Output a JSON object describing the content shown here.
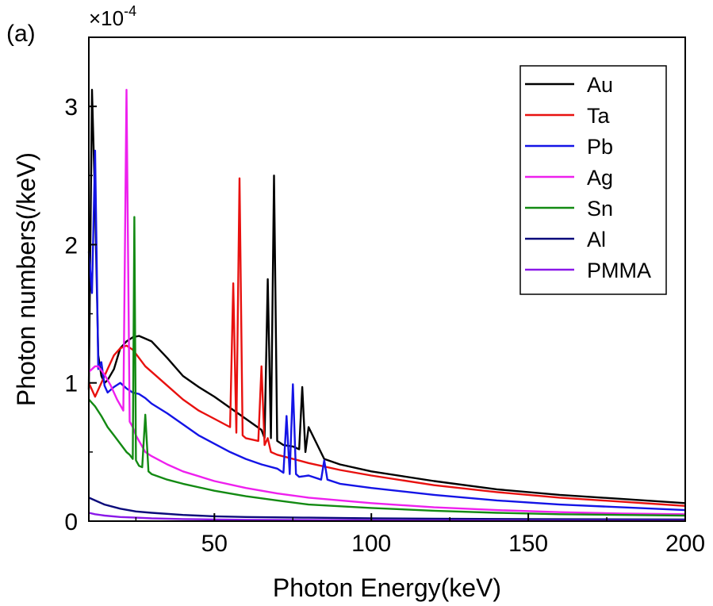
{
  "chart_data": {
    "type": "line",
    "panel_label": "(a)",
    "xlabel": "Photon Energy(keV)",
    "ylabel": "Photon numbers(/keV)",
    "y_multiplier": {
      "base": "×10",
      "exponent": "-4"
    },
    "xlim": [
      10,
      200
    ],
    "ylim": [
      0,
      3.5
    ],
    "x_ticks": [
      50,
      100,
      150,
      200
    ],
    "y_ticks": [
      0,
      1,
      2,
      3
    ],
    "grid": false,
    "legend_position": "top-right",
    "series": [
      {
        "name": "Au",
        "color": "#000000",
        "x": [
          10,
          11,
          12,
          13,
          14,
          15,
          16,
          18,
          20,
          22,
          24,
          26,
          28,
          30,
          35,
          40,
          45,
          50,
          55,
          60,
          65,
          66,
          67,
          68,
          69,
          70,
          72,
          75,
          77,
          78,
          79,
          80,
          85,
          90,
          100,
          120,
          140,
          160,
          180,
          200
        ],
        "y": [
          0.95,
          3.12,
          2.3,
          1.2,
          1.05,
          1.0,
          1.02,
          1.1,
          1.25,
          1.3,
          1.33,
          1.34,
          1.32,
          1.3,
          1.18,
          1.05,
          0.97,
          0.9,
          0.82,
          0.74,
          0.66,
          0.6,
          1.75,
          0.6,
          2.5,
          0.58,
          0.55,
          0.54,
          0.52,
          0.97,
          0.5,
          0.68,
          0.45,
          0.41,
          0.36,
          0.29,
          0.23,
          0.19,
          0.16,
          0.13
        ]
      },
      {
        "name": "Ta",
        "color": "#e8110f",
        "x": [
          10,
          12,
          14,
          16,
          18,
          20,
          22,
          24,
          26,
          28,
          30,
          35,
          40,
          45,
          50,
          55,
          56,
          57,
          58,
          59,
          60,
          64,
          65,
          66,
          67,
          68,
          70,
          80,
          90,
          100,
          120,
          140,
          160,
          180,
          200
        ],
        "y": [
          1.0,
          0.9,
          1.0,
          1.1,
          1.2,
          1.25,
          1.27,
          1.24,
          1.18,
          1.12,
          1.08,
          0.98,
          0.88,
          0.8,
          0.74,
          0.68,
          1.72,
          0.64,
          2.48,
          0.62,
          0.6,
          0.58,
          1.12,
          0.55,
          0.6,
          0.5,
          0.48,
          0.42,
          0.37,
          0.33,
          0.26,
          0.21,
          0.17,
          0.14,
          0.11
        ]
      },
      {
        "name": "Pb",
        "color": "#1414e6",
        "x": [
          10,
          11,
          12,
          13,
          14,
          15,
          16,
          18,
          20,
          22,
          24,
          26,
          28,
          30,
          35,
          40,
          45,
          50,
          55,
          60,
          65,
          70,
          72,
          73,
          74,
          75,
          76,
          77,
          80,
          84,
          85,
          86,
          90,
          100,
          120,
          140,
          160,
          180,
          200
        ],
        "y": [
          1.95,
          1.65,
          2.68,
          1.1,
          1.15,
          0.98,
          0.93,
          0.97,
          1.0,
          0.96,
          0.93,
          0.92,
          0.89,
          0.85,
          0.78,
          0.7,
          0.62,
          0.56,
          0.5,
          0.45,
          0.41,
          0.38,
          0.35,
          0.76,
          0.34,
          0.99,
          0.34,
          0.32,
          0.33,
          0.3,
          0.44,
          0.3,
          0.27,
          0.24,
          0.19,
          0.15,
          0.12,
          0.1,
          0.08
        ]
      },
      {
        "name": "Ag",
        "color": "#ee20ee",
        "x": [
          10,
          11,
          12,
          13,
          15,
          17,
          19,
          21,
          22,
          23,
          24,
          25,
          26,
          27,
          28,
          30,
          35,
          40,
          50,
          60,
          70,
          80,
          100,
          120,
          140,
          160,
          180,
          200
        ],
        "y": [
          1.08,
          1.1,
          1.12,
          1.12,
          1.06,
          0.98,
          0.88,
          0.8,
          3.12,
          0.72,
          0.68,
          0.62,
          0.58,
          0.54,
          0.5,
          0.47,
          0.41,
          0.36,
          0.29,
          0.24,
          0.2,
          0.17,
          0.13,
          0.1,
          0.08,
          0.065,
          0.055,
          0.05
        ]
      },
      {
        "name": "Sn",
        "color": "#138a13",
        "x": [
          10,
          12,
          14,
          16,
          18,
          20,
          22,
          23,
          24,
          24.5,
          25,
          26,
          27,
          28,
          29,
          30,
          35,
          40,
          50,
          60,
          70,
          80,
          100,
          120,
          140,
          160,
          180,
          200
        ],
        "y": [
          0.88,
          0.83,
          0.76,
          0.68,
          0.62,
          0.56,
          0.5,
          0.48,
          0.45,
          2.2,
          0.44,
          0.4,
          0.39,
          0.77,
          0.36,
          0.34,
          0.3,
          0.27,
          0.22,
          0.18,
          0.15,
          0.12,
          0.095,
          0.075,
          0.06,
          0.05,
          0.045,
          0.04
        ]
      },
      {
        "name": "Al",
        "color": "#0a0a7a",
        "x": [
          10,
          12,
          15,
          20,
          25,
          30,
          40,
          50,
          60,
          80,
          100,
          120,
          150,
          200
        ],
        "y": [
          0.17,
          0.15,
          0.12,
          0.09,
          0.07,
          0.06,
          0.045,
          0.035,
          0.03,
          0.025,
          0.02,
          0.018,
          0.015,
          0.012
        ]
      },
      {
        "name": "PMMA",
        "color": "#8a18e8",
        "x": [
          10,
          12,
          15,
          20,
          25,
          30,
          40,
          50,
          60,
          80,
          100,
          120,
          150,
          200
        ],
        "y": [
          0.06,
          0.05,
          0.04,
          0.03,
          0.025,
          0.02,
          0.015,
          0.012,
          0.01,
          0.008,
          0.006,
          0.005,
          0.004,
          0.003
        ]
      }
    ]
  }
}
